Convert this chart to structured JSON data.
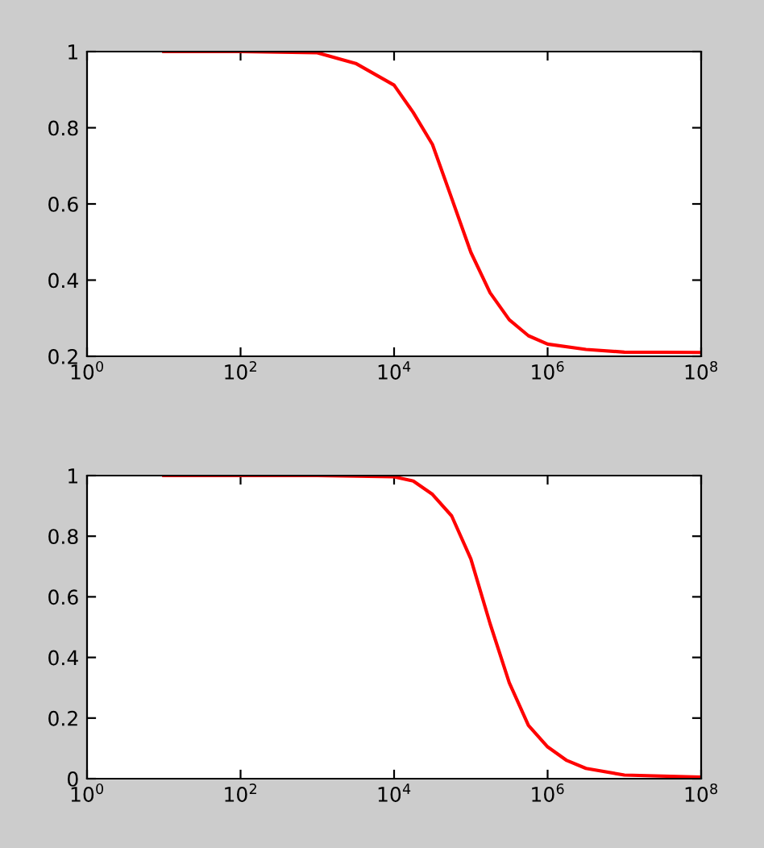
{
  "chart_data": [
    {
      "type": "line",
      "log": "x",
      "xlim": [
        1,
        100000000
      ],
      "ylim": [
        0.2,
        1
      ],
      "xticks": [
        {
          "value": 1,
          "label": "10$^{0}$"
        },
        {
          "value": 100,
          "label": "10$^{2}$"
        },
        {
          "value": 10000,
          "label": "10$^{4}$"
        },
        {
          "value": 1000000,
          "label": "10$^{6}$"
        },
        {
          "value": 100000000,
          "label": "10$^{8}$"
        }
      ],
      "yticks": [
        0.2,
        0.4,
        0.6,
        0.8,
        1
      ],
      "grid": false,
      "marker": "none",
      "line_style": "solid",
      "series": [
        {
          "color": "#ff0000",
          "x": [
            10,
            100,
            1000,
            3162,
            10000,
            17783,
            31623,
            56234,
            100000,
            177828,
            316228,
            562341,
            1000000,
            3162278,
            10000000,
            100000000
          ],
          "values": [
            1,
            1,
            0.997,
            0.969,
            0.912,
            0.84,
            0.756,
            0.615,
            0.473,
            0.367,
            0.296,
            0.254,
            0.232,
            0.218,
            0.211,
            0.21
          ]
        }
      ]
    },
    {
      "type": "line",
      "log": "x",
      "xlim": [
        1,
        100000000
      ],
      "ylim": [
        0,
        1
      ],
      "xticks": [
        {
          "value": 1,
          "label": "10$^{0}$"
        },
        {
          "value": 100,
          "label": "10$^{2}$"
        },
        {
          "value": 10000,
          "label": "10$^{4}$"
        },
        {
          "value": 1000000,
          "label": "10$^{6}$"
        },
        {
          "value": 100000000,
          "label": "10$^{8}$"
        }
      ],
      "yticks": [
        0,
        0.2,
        0.4,
        0.6,
        0.8,
        1
      ],
      "grid": false,
      "marker": "none",
      "line_style": "solid",
      "series": [
        {
          "color": "#ff0000",
          "x": [
            10,
            1000,
            10000,
            17783,
            31623,
            56234,
            100000,
            177828,
            316228,
            562341,
            1000000,
            1778279,
            3162278,
            10000000,
            100000000
          ],
          "values": [
            1,
            1,
            0.996,
            0.982,
            0.938,
            0.867,
            0.725,
            0.512,
            0.317,
            0.176,
            0.105,
            0.06,
            0.034,
            0.012,
            0.005
          ]
        }
      ]
    }
  ]
}
